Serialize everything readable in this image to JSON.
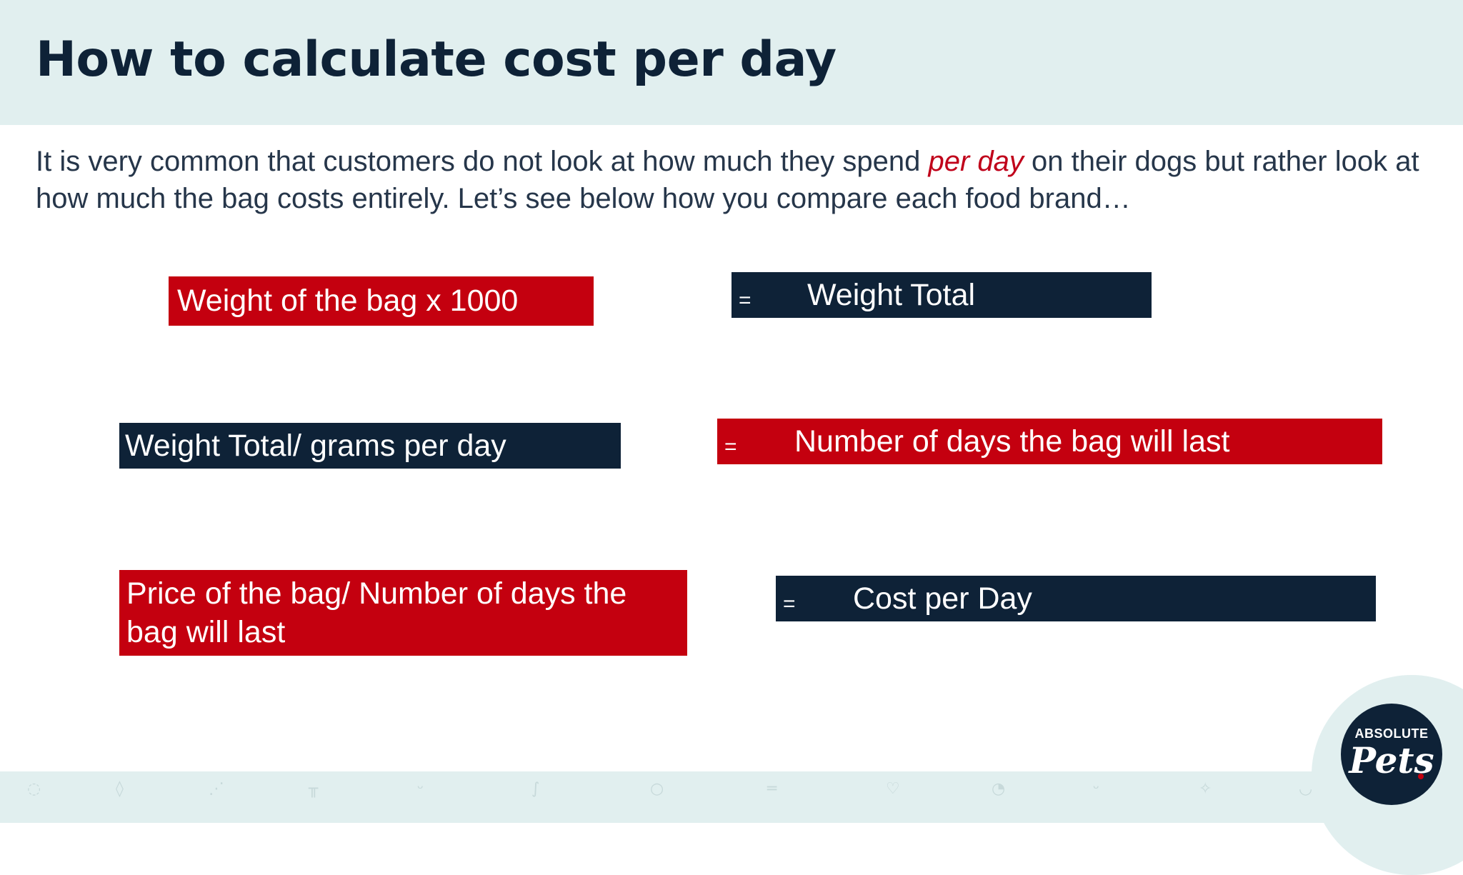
{
  "header": {
    "title": "How to calculate cost per day"
  },
  "intro": {
    "before": "It is very common that customers do not look at how much they spend ",
    "emphasis": "per day",
    "after": "  on their dogs but rather look at how much the bag costs entirely. Let’s see below how you compare each food brand…"
  },
  "formulas": [
    {
      "text": "Weight of the bag x 1000",
      "color": "#c4000f"
    },
    {
      "equals": "=",
      "text": "Weight Total",
      "color": "#0e2237"
    },
    {
      "text": "Weight Total/ grams per day",
      "color": "#0e2237"
    },
    {
      "equals": "=",
      "text": "Number of days the bag will last",
      "color": "#c4000f"
    },
    {
      "text": "Price of the bag/ Number of days the bag will last",
      "color": "#c4000f"
    },
    {
      "equals": "=",
      "text": "Cost per Day",
      "color": "#0e2237"
    }
  ],
  "footer": {
    "icons": [
      "ball-icon",
      "drop-icon",
      "fish-icon",
      "comb-icon",
      "bird-icon",
      "leash-icon",
      "fishbowl-icon",
      "bone-icon",
      "heart-icon",
      "turtle-icon",
      "bird-icon",
      "star-icon",
      "bowl-icon"
    ]
  },
  "logo": {
    "top": "ABSOLUTE",
    "bottom": "Pets"
  },
  "colors": {
    "accent_red": "#c4000f",
    "navy": "#0e2237",
    "band": "#e1efef"
  }
}
